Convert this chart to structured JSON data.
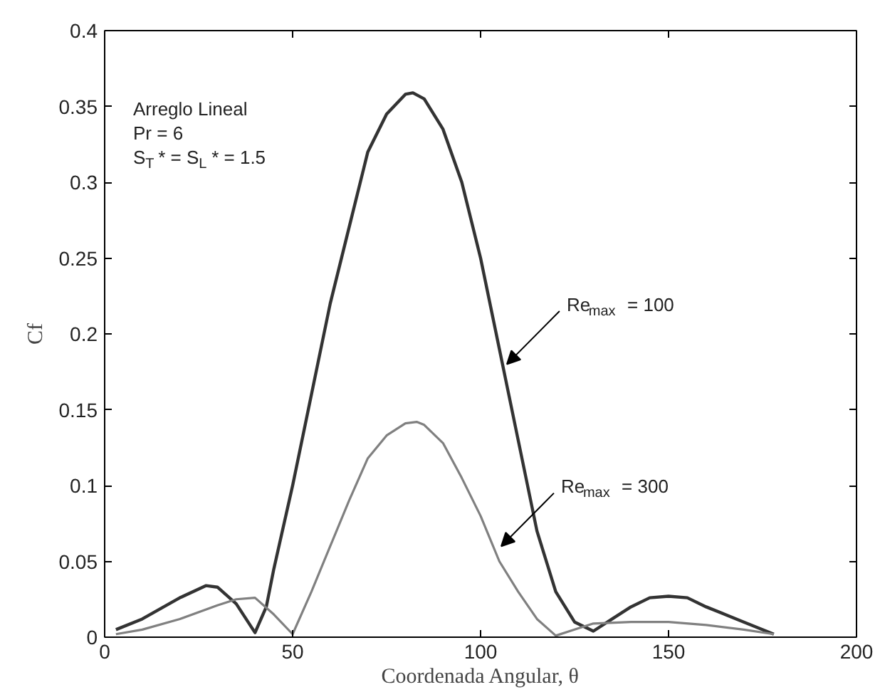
{
  "chart_data": {
    "type": "line",
    "xlabel": "Coordenada Angular, θ",
    "ylabel": "Cf",
    "xlim": [
      0,
      200
    ],
    "ylim": [
      0,
      0.4
    ],
    "xticks": [
      0,
      50,
      100,
      150,
      200
    ],
    "yticks": [
      0,
      0.05,
      0.1,
      0.15,
      0.2,
      0.25,
      0.3,
      0.35,
      0.4
    ],
    "grid": false,
    "marker": "none",
    "line_style": "solid",
    "series": [
      {
        "color": "#333333",
        "x": [
          3,
          10,
          20,
          27,
          30,
          35,
          40,
          43,
          45,
          50,
          55,
          60,
          65,
          70,
          75,
          80,
          82,
          85,
          90,
          95,
          100,
          105,
          110,
          115,
          120,
          125,
          130,
          135,
          140,
          145,
          150,
          155,
          160,
          170,
          178
        ],
        "values": [
          0.005,
          0.012,
          0.026,
          0.034,
          0.033,
          0.022,
          0.003,
          0.02,
          0.045,
          0.1,
          0.16,
          0.22,
          0.27,
          0.32,
          0.345,
          0.358,
          0.359,
          0.355,
          0.335,
          0.3,
          0.25,
          0.19,
          0.13,
          0.07,
          0.03,
          0.01,
          0.004,
          0.012,
          0.02,
          0.026,
          0.027,
          0.026,
          0.02,
          0.01,
          0.002
        ]
      },
      {
        "color": "#808080",
        "x": [
          3,
          10,
          20,
          30,
          35,
          40,
          45,
          50,
          55,
          60,
          65,
          70,
          75,
          80,
          83,
          85,
          90,
          95,
          100,
          105,
          110,
          115,
          120,
          125,
          130,
          140,
          150,
          160,
          170,
          178
        ],
        "values": [
          0.002,
          0.005,
          0.012,
          0.021,
          0.025,
          0.026,
          0.015,
          0.002,
          0.03,
          0.06,
          0.09,
          0.118,
          0.133,
          0.141,
          0.142,
          0.14,
          0.128,
          0.105,
          0.08,
          0.05,
          0.03,
          0.012,
          0.001,
          0.005,
          0.009,
          0.01,
          0.01,
          0.008,
          0.005,
          0.002
        ]
      }
    ],
    "annotations": [
      "Arreglo Lineal",
      "Pr = 6",
      "S$_{T}$* = S$_{L}$* = 1.5",
      {
        "text": "Re$_{max}$ = 100",
        "x": 107,
        "y": 0.18
      },
      {
        "text": "Re$_{max}$ = 300",
        "x": 105.5,
        "y": 0.06
      }
    ]
  }
}
